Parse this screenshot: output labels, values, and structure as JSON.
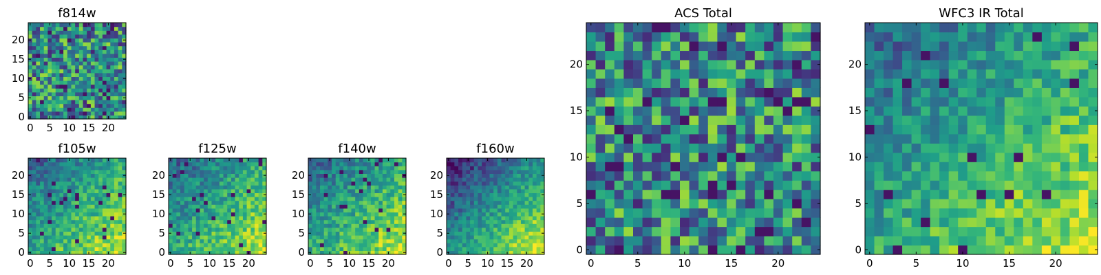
{
  "chart_data": [
    {
      "id": "f814w",
      "type": "heatmap",
      "title": "f814w",
      "grid_size": 25,
      "seed": 11,
      "pattern": "uniform",
      "xlim": [
        0,
        24
      ],
      "ylim": [
        0,
        24
      ],
      "xticks": [
        0,
        5,
        10,
        15,
        20
      ],
      "yticks": [
        0,
        5,
        10,
        15,
        20
      ],
      "xtick_labels": [
        "0",
        "5",
        "10",
        "15",
        "20"
      ],
      "ytick_labels": [
        "0",
        "5",
        "10",
        "15",
        "20"
      ],
      "colormap": "viridis"
    },
    {
      "id": "f105w",
      "type": "heatmap",
      "title": "f105w",
      "grid_size": 25,
      "seed": 23,
      "pattern": "diagonal",
      "xlim": [
        0,
        24
      ],
      "ylim": [
        0,
        24
      ],
      "xticks": [
        0,
        5,
        10,
        15,
        20
      ],
      "yticks": [
        0,
        5,
        10,
        15,
        20
      ],
      "xtick_labels": [
        "0",
        "5",
        "10",
        "15",
        "20"
      ],
      "ytick_labels": [
        "0",
        "5",
        "10",
        "15",
        "20"
      ],
      "colormap": "viridis"
    },
    {
      "id": "f125w",
      "type": "heatmap",
      "title": "f125w",
      "grid_size": 25,
      "seed": 37,
      "pattern": "diagonal",
      "xlim": [
        0,
        24
      ],
      "ylim": [
        0,
        24
      ],
      "xticks": [
        0,
        5,
        10,
        15,
        20
      ],
      "yticks": [
        0,
        5,
        10,
        15,
        20
      ],
      "xtick_labels": [
        "0",
        "5",
        "10",
        "15",
        "20"
      ],
      "ytick_labels": [
        "0",
        "5",
        "10",
        "15",
        "20"
      ],
      "colormap": "viridis"
    },
    {
      "id": "f140w",
      "type": "heatmap",
      "title": "f140w",
      "grid_size": 25,
      "seed": 41,
      "pattern": "diagonal",
      "xlim": [
        0,
        24
      ],
      "ylim": [
        0,
        24
      ],
      "xticks": [
        0,
        5,
        10,
        15,
        20
      ],
      "yticks": [
        0,
        5,
        10,
        15,
        20
      ],
      "xtick_labels": [
        "0",
        "5",
        "10",
        "15",
        "20"
      ],
      "ytick_labels": [
        "0",
        "5",
        "10",
        "15",
        "20"
      ],
      "colormap": "viridis"
    },
    {
      "id": "f160w",
      "type": "heatmap",
      "title": "f160w",
      "grid_size": 25,
      "seed": 53,
      "pattern": "diagonal-strong",
      "xlim": [
        0,
        24
      ],
      "ylim": [
        0,
        24
      ],
      "xticks": [
        0,
        5,
        10,
        15,
        20
      ],
      "yticks": [
        0,
        5,
        10,
        15,
        20
      ],
      "xtick_labels": [
        "0",
        "5",
        "10",
        "15",
        "20"
      ],
      "ytick_labels": [
        "0",
        "5",
        "10",
        "15",
        "20"
      ],
      "colormap": "viridis"
    },
    {
      "id": "acs_total",
      "type": "heatmap",
      "title": "ACS Total",
      "grid_size": 25,
      "seed": 67,
      "pattern": "uniform",
      "xlim": [
        0,
        24
      ],
      "ylim": [
        0,
        24
      ],
      "xticks": [
        0,
        5,
        10,
        15,
        20
      ],
      "yticks": [
        0,
        5,
        10,
        15,
        20
      ],
      "xtick_labels": [
        "0",
        "5",
        "10",
        "15",
        "20"
      ],
      "ytick_labels": [
        "0",
        "5",
        "10",
        "15",
        "20"
      ],
      "colormap": "viridis"
    },
    {
      "id": "wfc3_ir_total",
      "type": "heatmap",
      "title": "WFC3 IR Total",
      "grid_size": 25,
      "seed": 79,
      "pattern": "diagonal",
      "xlim": [
        0,
        24
      ],
      "ylim": [
        0,
        24
      ],
      "xticks": [
        0,
        5,
        10,
        15,
        20
      ],
      "yticks": [
        0,
        5,
        10,
        15,
        20
      ],
      "xtick_labels": [
        "0",
        "5",
        "10",
        "15",
        "20"
      ],
      "ytick_labels": [
        "0",
        "5",
        "10",
        "15",
        "20"
      ],
      "colormap": "viridis"
    }
  ]
}
